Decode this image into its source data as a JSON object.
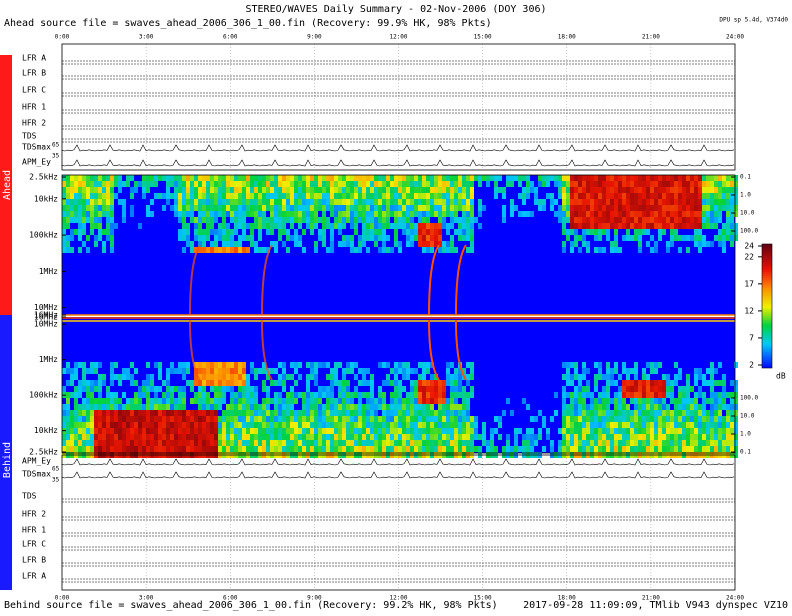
{
  "chart_data": {
    "type": "spectrogram",
    "title": "STEREO/WAVES Daily Summary - 02-Nov-2006 (DOY 306)",
    "top_note": "Ahead source file = swaves_ahead_2006_306_1_00.fin (Recovery: 99.9% HK, 98% Pkts)",
    "dpu_note": "DPU sp 5.4d, V374d0",
    "bottom_note": "Behind source file = swaves_ahead_2006_306_1_00.fin (Recovery: 99.2% HK, 98% Pkts)",
    "footer": "2017-09-28 11:09:09, TMlib V943 dynspec VZ10",
    "x_labels": [
      "0:00",
      "3:00",
      "6:00",
      "9:00",
      "12:00",
      "15:00",
      "18:00",
      "21:00",
      "24:00"
    ],
    "ahead_label": "Ahead",
    "behind_label": "Behind",
    "ahead_panels": [
      "LFR A",
      "LFR B",
      "LFR C",
      "HFR 1",
      "HFR 2",
      "TDS",
      "TDSmax",
      "APM_Ey"
    ],
    "behind_panels": [
      "APM_Ey",
      "TDSmax",
      "TDS",
      "HFR 2",
      "HFR 1",
      "LFR C",
      "LFR B",
      "LFR A"
    ],
    "tdsmax_scale": [
      "65",
      "35"
    ],
    "freq_log": true,
    "freq_lim": [
      2500,
      16000000
    ],
    "freq_ticks": [
      {
        "value": 2500,
        "label": "2.5kHz"
      },
      {
        "value": 10000,
        "label": "10kHz"
      },
      {
        "value": 100000,
        "label": "100kHz"
      },
      {
        "value": 1000000,
        "label": "1MHz"
      },
      {
        "value": 10000000,
        "label": "10MHz"
      },
      {
        "value": 16000000,
        "label": "16MHz"
      }
    ],
    "sfu_ticks": [
      0.1,
      {
        "value": 1,
        "label": "1.0"
      },
      {
        "value": 10,
        "label": "10.0"
      },
      {
        "value": 100,
        "label": "100.0"
      }
    ],
    "colorbar_lim": [
      2,
      24
    ],
    "colorbar_ticks": [
      24,
      22,
      17,
      12,
      7,
      2
    ],
    "colorbar_unit": "dB"
  }
}
